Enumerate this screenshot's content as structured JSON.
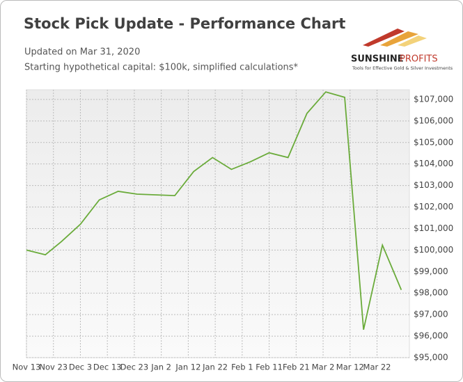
{
  "logo": {
    "words": [
      "SUNSHINE",
      "PROFITS"
    ],
    "tagline": "Tools for Effective Gold & Silver Investments"
  },
  "chart_data": {
    "type": "line",
    "title": "Stock Pick Update - Performance Chart",
    "subtitle": [
      "Updated on Mar 31, 2020",
      "Starting hypothetical capital: $100k, simplified calculations*"
    ],
    "x": [
      "Nov 13",
      "Nov 20",
      "Nov 26",
      "Dec 3",
      "Dec 10",
      "Dec 17",
      "Dec 24",
      "Jan 7",
      "Jan 14",
      "Jan 21",
      "Jan 28",
      "Feb 4",
      "Feb 11",
      "Feb 18",
      "Feb 25",
      "Mar 3",
      "Mar 10",
      "Mar 17",
      "Mar 24",
      "Mar 31"
    ],
    "series": [
      {
        "color": "#6aab3a",
        "values": [
          100000,
          99780,
          100400,
          101200,
          102330,
          102730,
          102600,
          102530,
          103650,
          104300,
          103750,
          104100,
          104520,
          104300,
          106350,
          107350,
          107100,
          96300,
          100230,
          98150
        ]
      }
    ],
    "xlim": [
      "Nov 13",
      "Apr 3"
    ],
    "xticks": [
      "Nov 13",
      "Nov 23",
      "Dec 3",
      "Dec 13",
      "Dec 23",
      "Jan 2",
      "Jan 12",
      "Jan 22",
      "Feb 1",
      "Feb 11",
      "Feb 21",
      "Mar 2",
      "Mar 12",
      "Mar 22"
    ],
    "ylim": [
      95000,
      107450
    ],
    "yticks": [
      {
        "value": 95000,
        "label": "$95,000"
      },
      {
        "value": 96000,
        "label": "$96,000"
      },
      {
        "value": 97000,
        "label": "$97,000"
      },
      {
        "value": 98000,
        "label": "$98,000"
      },
      {
        "value": 99000,
        "label": "$99,000"
      },
      {
        "value": 100000,
        "label": "$100,000"
      },
      {
        "value": 101000,
        "label": "$101,000"
      },
      {
        "value": 102000,
        "label": "$102,000"
      },
      {
        "value": 103000,
        "label": "$103,000"
      },
      {
        "value": 104000,
        "label": "$104,000"
      },
      {
        "value": 105000,
        "label": "$105,000"
      },
      {
        "value": 106000,
        "label": "$106,000"
      },
      {
        "value": 107000,
        "label": "$107,000"
      }
    ],
    "grid": true
  }
}
